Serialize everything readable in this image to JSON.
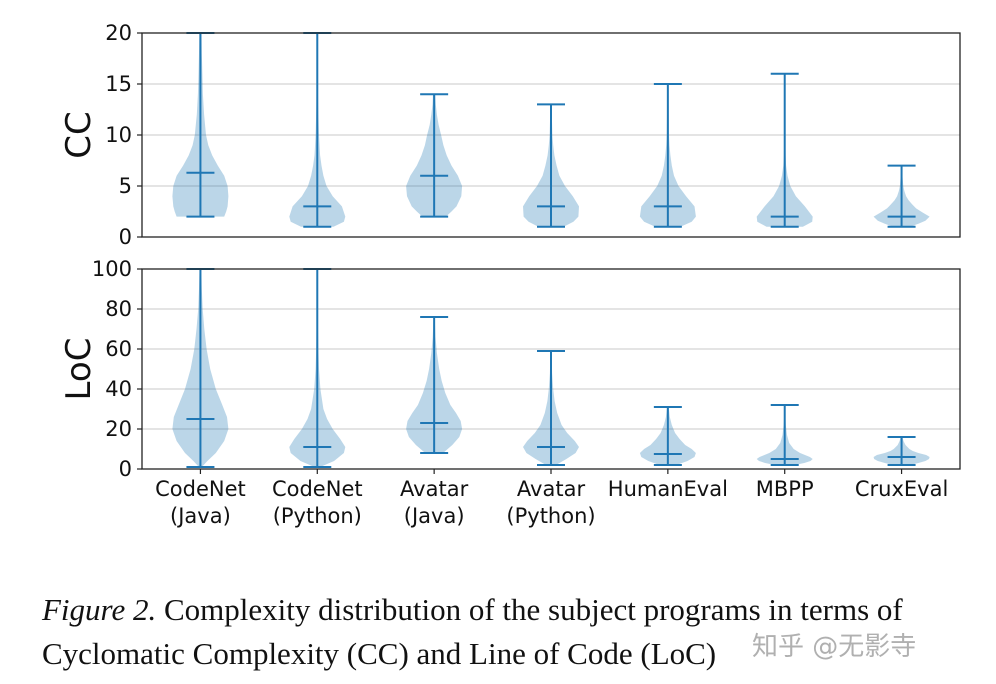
{
  "chart_data": [
    {
      "type": "violin",
      "ylabel": "CC",
      "ylim": [
        0,
        20
      ],
      "yticks": [
        "0",
        "5",
        "10",
        "15",
        "20"
      ],
      "grid": true,
      "series": [
        {
          "name": "CodeNet (Java)",
          "min": 2,
          "max": 20,
          "median": 6.3,
          "density": [
            [
              2,
              0.85
            ],
            [
              2.5,
              0.92
            ],
            [
              3,
              0.97
            ],
            [
              4,
              1.0
            ],
            [
              5,
              0.97
            ],
            [
              6,
              0.85
            ],
            [
              7,
              0.62
            ],
            [
              8,
              0.42
            ],
            [
              9,
              0.28
            ],
            [
              10,
              0.2
            ],
            [
              12,
              0.13
            ],
            [
              14,
              0.09
            ],
            [
              16,
              0.07
            ],
            [
              18,
              0.05
            ],
            [
              20,
              0.04
            ]
          ]
        },
        {
          "name": "CodeNet (Python)",
          "min": 1,
          "max": 20,
          "median": 3,
          "density": [
            [
              1,
              0.58
            ],
            [
              1.5,
              0.95
            ],
            [
              2,
              1.0
            ],
            [
              3,
              0.88
            ],
            [
              4,
              0.55
            ],
            [
              5,
              0.33
            ],
            [
              6,
              0.22
            ],
            [
              7,
              0.15
            ],
            [
              8,
              0.1
            ],
            [
              10,
              0.06
            ],
            [
              13,
              0.03
            ],
            [
              16,
              0.02
            ],
            [
              20,
              0.01
            ]
          ]
        },
        {
          "name": "Avatar (Java)",
          "min": 2,
          "max": 14,
          "median": 6,
          "density": [
            [
              2,
              0.42
            ],
            [
              2.5,
              0.62
            ],
            [
              3,
              0.8
            ],
            [
              4,
              0.97
            ],
            [
              5,
              1.0
            ],
            [
              6,
              0.85
            ],
            [
              7,
              0.62
            ],
            [
              8,
              0.45
            ],
            [
              9,
              0.33
            ],
            [
              10,
              0.25
            ],
            [
              11,
              0.16
            ],
            [
              12,
              0.1
            ],
            [
              13,
              0.06
            ],
            [
              14,
              0.04
            ]
          ]
        },
        {
          "name": "Avatar (Python)",
          "min": 1,
          "max": 13,
          "median": 3,
          "density": [
            [
              1,
              0.45
            ],
            [
              1.5,
              0.8
            ],
            [
              2,
              0.98
            ],
            [
              3,
              1.0
            ],
            [
              4,
              0.78
            ],
            [
              5,
              0.5
            ],
            [
              6,
              0.3
            ],
            [
              7,
              0.2
            ],
            [
              8,
              0.12
            ],
            [
              9,
              0.08
            ],
            [
              10,
              0.05
            ],
            [
              12,
              0.03
            ],
            [
              13,
              0.02
            ]
          ]
        },
        {
          "name": "HumanEval",
          "min": 1,
          "max": 15,
          "median": 3,
          "density": [
            [
              1,
              0.45
            ],
            [
              1.5,
              0.85
            ],
            [
              2,
              1.0
            ],
            [
              3,
              0.95
            ],
            [
              4,
              0.65
            ],
            [
              5,
              0.38
            ],
            [
              6,
              0.22
            ],
            [
              7,
              0.14
            ],
            [
              8,
              0.09
            ],
            [
              9,
              0.06
            ],
            [
              10,
              0.04
            ],
            [
              12,
              0.03
            ],
            [
              15,
              0.02
            ]
          ]
        },
        {
          "name": "MBPP",
          "min": 1,
          "max": 16,
          "median": 2,
          "density": [
            [
              1,
              0.65
            ],
            [
              1.5,
              0.98
            ],
            [
              2,
              1.0
            ],
            [
              3,
              0.72
            ],
            [
              4,
              0.4
            ],
            [
              5,
              0.2
            ],
            [
              6,
              0.1
            ],
            [
              7,
              0.05
            ],
            [
              8,
              0.03
            ],
            [
              10,
              0.02
            ],
            [
              13,
              0.01
            ],
            [
              16,
              0.01
            ]
          ]
        },
        {
          "name": "CruxEval",
          "min": 1,
          "max": 7,
          "median": 2,
          "density": [
            [
              1,
              0.3
            ],
            [
              1.3,
              0.6
            ],
            [
              1.6,
              0.85
            ],
            [
              2,
              1.0
            ],
            [
              2.4,
              0.75
            ],
            [
              2.8,
              0.52
            ],
            [
              3.2,
              0.38
            ],
            [
              3.6,
              0.25
            ],
            [
              4,
              0.16
            ],
            [
              4.5,
              0.1
            ],
            [
              5,
              0.06
            ],
            [
              6,
              0.03
            ],
            [
              7,
              0.02
            ]
          ]
        }
      ]
    },
    {
      "type": "violin",
      "ylabel": "LoC",
      "ylim": [
        0,
        100
      ],
      "yticks": [
        "0",
        "20",
        "40",
        "60",
        "80",
        "100"
      ],
      "grid": true,
      "series": [
        {
          "name": "CodeNet (Java)",
          "min": 1,
          "max": 100,
          "median": 25,
          "density": [
            [
              1,
              0.05
            ],
            [
              4,
              0.25
            ],
            [
              8,
              0.55
            ],
            [
              14,
              0.85
            ],
            [
              20,
              1.0
            ],
            [
              26,
              0.95
            ],
            [
              32,
              0.78
            ],
            [
              40,
              0.55
            ],
            [
              50,
              0.35
            ],
            [
              60,
              0.22
            ],
            [
              70,
              0.14
            ],
            [
              80,
              0.08
            ],
            [
              90,
              0.05
            ],
            [
              100,
              0.03
            ]
          ]
        },
        {
          "name": "CodeNet (Python)",
          "min": 1,
          "max": 100,
          "median": 11,
          "density": [
            [
              1,
              0.1
            ],
            [
              4,
              0.6
            ],
            [
              8,
              0.95
            ],
            [
              11,
              1.0
            ],
            [
              15,
              0.82
            ],
            [
              20,
              0.55
            ],
            [
              25,
              0.35
            ],
            [
              30,
              0.22
            ],
            [
              40,
              0.11
            ],
            [
              50,
              0.06
            ],
            [
              60,
              0.04
            ],
            [
              75,
              0.02
            ],
            [
              100,
              0.01
            ]
          ]
        },
        {
          "name": "Avatar (Java)",
          "min": 8,
          "max": 76,
          "median": 23,
          "density": [
            [
              8,
              0.32
            ],
            [
              12,
              0.65
            ],
            [
              16,
              0.9
            ],
            [
              20,
              1.0
            ],
            [
              24,
              0.95
            ],
            [
              28,
              0.78
            ],
            [
              32,
              0.58
            ],
            [
              38,
              0.4
            ],
            [
              44,
              0.27
            ],
            [
              50,
              0.18
            ],
            [
              58,
              0.1
            ],
            [
              66,
              0.05
            ],
            [
              76,
              0.02
            ]
          ]
        },
        {
          "name": "Avatar (Python)",
          "min": 2,
          "max": 59,
          "median": 11,
          "density": [
            [
              2,
              0.18
            ],
            [
              5,
              0.55
            ],
            [
              8,
              0.88
            ],
            [
              11,
              1.0
            ],
            [
              14,
              0.85
            ],
            [
              18,
              0.58
            ],
            [
              22,
              0.38
            ],
            [
              28,
              0.22
            ],
            [
              34,
              0.13
            ],
            [
              40,
              0.08
            ],
            [
              48,
              0.04
            ],
            [
              59,
              0.02
            ]
          ]
        },
        {
          "name": "HumanEval",
          "min": 2,
          "max": 31,
          "median": 7.5,
          "density": [
            [
              2,
              0.3
            ],
            [
              4,
              0.7
            ],
            [
              6,
              0.95
            ],
            [
              8,
              1.0
            ],
            [
              10,
              0.85
            ],
            [
              12,
              0.62
            ],
            [
              15,
              0.42
            ],
            [
              18,
              0.26
            ],
            [
              22,
              0.14
            ],
            [
              26,
              0.07
            ],
            [
              31,
              0.03
            ]
          ]
        },
        {
          "name": "MBPP",
          "min": 2,
          "max": 32,
          "median": 5,
          "density": [
            [
              2,
              0.35
            ],
            [
              3,
              0.7
            ],
            [
              4,
              0.92
            ],
            [
              5,
              1.0
            ],
            [
              6,
              0.9
            ],
            [
              8,
              0.55
            ],
            [
              10,
              0.32
            ],
            [
              13,
              0.16
            ],
            [
              17,
              0.08
            ],
            [
              22,
              0.04
            ],
            [
              27,
              0.02
            ],
            [
              32,
              0.01
            ]
          ]
        },
        {
          "name": "CruxEval",
          "min": 2,
          "max": 16,
          "median": 6,
          "density": [
            [
              2,
              0.3
            ],
            [
              3,
              0.6
            ],
            [
              4,
              0.85
            ],
            [
              5,
              0.98
            ],
            [
              6,
              1.0
            ],
            [
              7,
              0.88
            ],
            [
              8,
              0.6
            ],
            [
              9,
              0.4
            ],
            [
              10,
              0.28
            ],
            [
              12,
              0.14
            ],
            [
              14,
              0.07
            ],
            [
              16,
              0.03
            ]
          ]
        }
      ]
    }
  ],
  "x_labels": [
    [
      "CodeNet",
      "(Java)"
    ],
    [
      "CodeNet",
      "(Python)"
    ],
    [
      "Avatar",
      "(Java)"
    ],
    [
      "Avatar",
      "(Python)"
    ],
    [
      "HumanEval"
    ],
    [
      "MBPP"
    ],
    [
      "CruxEval"
    ]
  ],
  "caption": {
    "label": "Figure 2.",
    "text": "Complexity distribution of the subject programs in terms of Cyclomatic Complexity (CC) and Line of Code (LoC)"
  },
  "watermark": "知乎 @无影寺",
  "colors": {
    "violin": "#1f77b4"
  }
}
